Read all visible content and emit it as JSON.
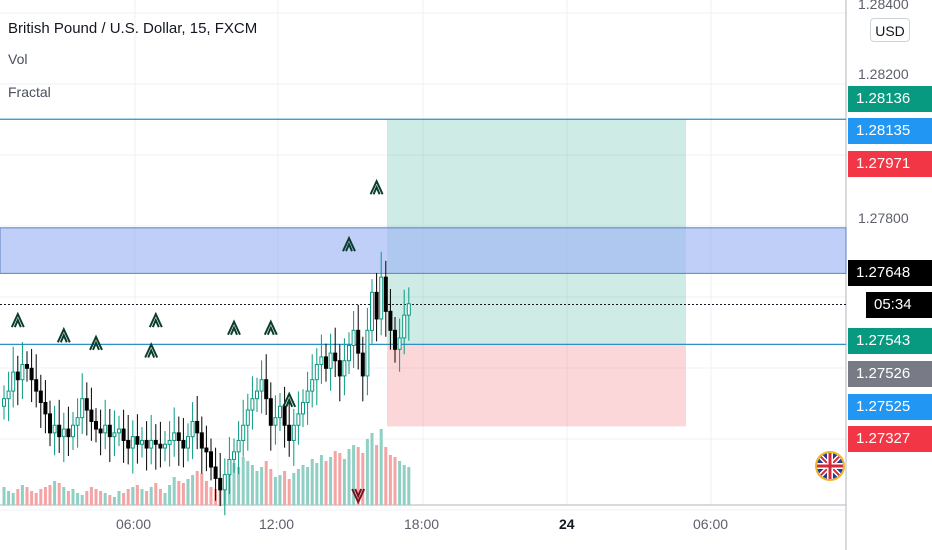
{
  "header": {
    "title": "British Pound / U.S. Dollar, 15, FXCM",
    "indicator_vol": "Vol",
    "indicator_fractal": "Fractal"
  },
  "currency_button": "USD",
  "price_axis": {
    "ticks": [
      "1.28400",
      "1.28200",
      "1.27800"
    ],
    "tags": {
      "target": {
        "value": "1.28136",
        "color": "#089981"
      },
      "ask": {
        "value": "1.28135",
        "color": "#2196f3"
      },
      "high": {
        "value": "1.27971",
        "color": "#f23645"
      },
      "last": {
        "value": "1.27648",
        "color": "#000000"
      },
      "countdown": {
        "value": "05:34",
        "color": "#000000"
      },
      "entry": {
        "value": "1.27543",
        "color": "#089981"
      },
      "mid": {
        "value": "1.27526",
        "color": "#787b86"
      },
      "bid": {
        "value": "1.27525",
        "color": "#2196f3"
      },
      "stop": {
        "value": "1.27327",
        "color": "#f23645"
      }
    }
  },
  "time_axis": {
    "labels": [
      "06:00",
      "12:00",
      "18:00",
      "24",
      "06:00"
    ]
  },
  "colors": {
    "up": "#089981",
    "down": "#000000",
    "vol_up": "#8fcfc4",
    "vol_down": "#f4a4a4",
    "zone": "#9db6f5",
    "hline": "#2f8fc7"
  },
  "chart_data": {
    "type": "candlestick",
    "title": "British Pound / U.S. Dollar, 15, FXCM",
    "x_range": [
      "00:30",
      "09:30 next day"
    ],
    "y_range": [
      1.2712,
      1.2845
    ],
    "horizontal_lines": [
      1.28136,
      1.27543
    ],
    "supply_zone": [
      1.2773,
      1.2785
    ],
    "long_position": {
      "entry": 1.27543,
      "target": 1.28136,
      "stop": 1.27327
    },
    "last_price": 1.27648,
    "candles_close": [
      1.274,
      1.2742,
      1.2747,
      1.2745,
      1.2749,
      1.2748,
      1.2745,
      1.2742,
      1.2739,
      1.2736,
      1.2731,
      1.2733,
      1.273,
      1.2732,
      1.273,
      1.2733,
      1.2735,
      1.274,
      1.2737,
      1.2734,
      1.2732,
      1.2731,
      1.2733,
      1.273,
      1.2731,
      1.2732,
      1.2729,
      1.2727,
      1.273,
      1.2728,
      1.2729,
      1.2727,
      1.2729,
      1.2728,
      1.2727,
      1.2728,
      1.2729,
      1.2731,
      1.2729,
      1.2727,
      1.273,
      1.2734,
      1.2731,
      1.2727,
      1.2726,
      1.2722,
      1.2719,
      1.2716,
      1.272,
      1.2724,
      1.2726,
      1.2729,
      1.2733,
      1.2737,
      1.274,
      1.2742,
      1.2745,
      1.274,
      1.2733,
      1.2735,
      1.2738,
      1.2733,
      1.2729,
      1.2733,
      1.2736,
      1.2739,
      1.2742,
      1.2745,
      1.2749,
      1.2751,
      1.2748,
      1.2752,
      1.275,
      1.2746,
      1.275,
      1.2754,
      1.2758,
      1.2752,
      1.2746,
      1.2758,
      1.2768,
      1.2761,
      1.2772,
      1.2763,
      1.2758,
      1.2753,
      1.2756,
      1.2762,
      1.2765
    ],
    "volume": [
      9,
      7,
      6,
      8,
      10,
      9,
      7,
      6,
      8,
      9,
      10,
      12,
      11,
      9,
      7,
      8,
      6,
      5,
      7,
      9,
      8,
      7,
      6,
      5,
      4,
      7,
      6,
      8,
      9,
      10,
      8,
      7,
      9,
      11,
      8,
      6,
      10,
      14,
      12,
      11,
      13,
      15,
      17,
      16,
      12,
      9,
      8,
      10,
      13,
      17,
      21,
      19,
      24,
      22,
      20,
      17,
      19,
      22,
      18,
      14,
      15,
      17,
      13,
      16,
      18,
      20,
      19,
      23,
      21,
      25,
      22,
      24,
      27,
      26,
      23,
      28,
      30,
      29,
      26,
      33,
      36,
      30,
      38,
      29,
      25,
      24,
      22,
      20,
      19
    ],
    "fractals_up": [
      1.2757,
      1.2753,
      1.2751,
      1.2749,
      1.2757,
      1.2755,
      1.2755,
      1.2736,
      1.2777,
      1.2792
    ],
    "fractals_down": [
      1.2717
    ]
  }
}
